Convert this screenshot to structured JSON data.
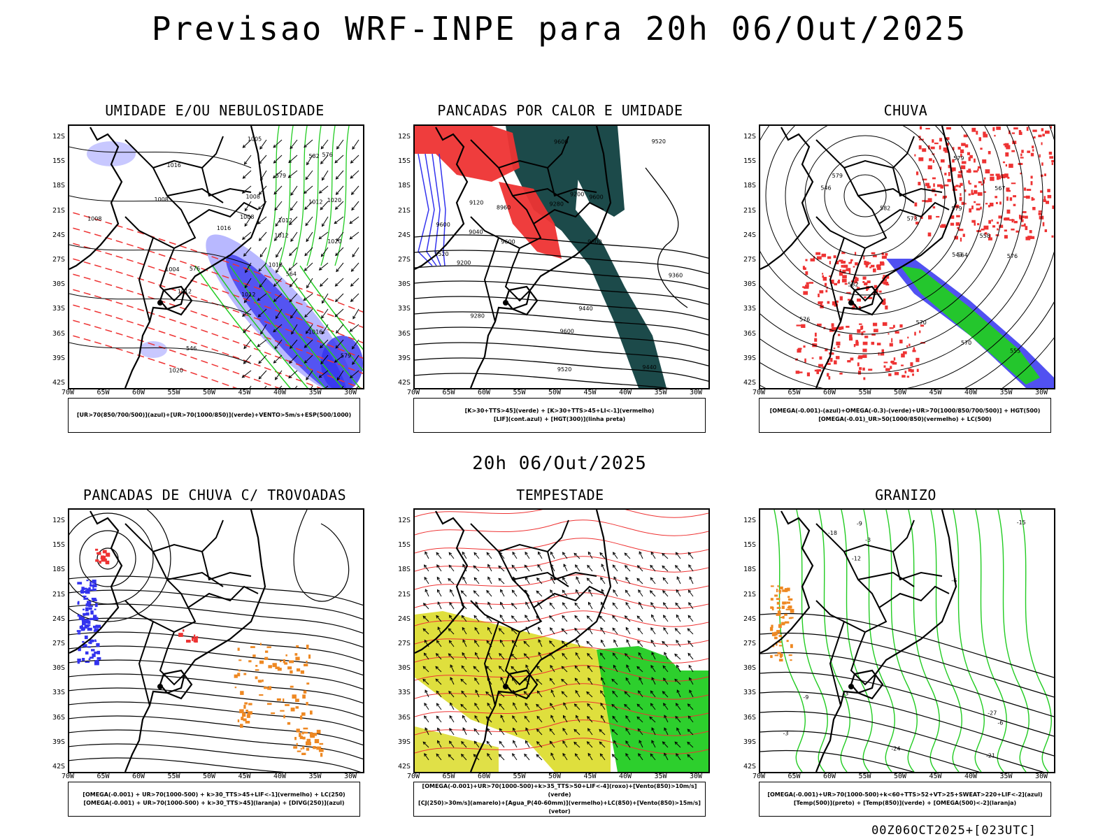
{
  "header": {
    "title": "Previsao WRF-INPE  para 20h 06/Out/2025"
  },
  "mid_time": "20h 06/Out/2025",
  "footer": "00Z06OCT2025+[023UTC]",
  "colors": {
    "coast": "#000000",
    "red": "#ee3333",
    "green": "#22cc22",
    "blue": "#3333ee",
    "lightblue": "#b0b0ff",
    "darkteal": "#1c4a4a",
    "yellow": "#dddd33",
    "orange": "#ee8822"
  },
  "axes": {
    "y_labels": [
      "12S",
      "15S",
      "18S",
      "21S",
      "24S",
      "27S",
      "30S",
      "33S",
      "36S",
      "39S",
      "42S"
    ],
    "x_labels": [
      "70W",
      "65W",
      "60W",
      "55W",
      "50W",
      "45W",
      "40W",
      "35W",
      "30W"
    ]
  },
  "panels": [
    {
      "title": "UMIDADE E/OU NEBULOSIDADE",
      "legend": [
        "[UR>70(850/700/500)](azul)+[UR>70(1000/850)](verde)+VENTO>5m/s+ESP(500/1000)"
      ],
      "contour_labels": [
        "1008",
        "1008",
        "1012",
        "1008",
        "1012",
        "1016",
        "1016",
        "1012",
        "1016",
        "1020",
        "1020",
        "1012",
        "1005",
        "1004",
        "1008",
        "1016",
        "1012",
        "1020",
        "576",
        "576",
        "579",
        "579",
        "582",
        "546",
        "564"
      ]
    },
    {
      "title": "PANCADAS POR CALOR E UMIDADE",
      "legend": [
        "[K>30+TTS>45](verde) + [K>30+TTS>45+LI<-1](vermelho)",
        "[LIF](cont.azul) + [HGT(300)](linha preta)"
      ],
      "contour_labels": [
        "9600",
        "9600",
        "9600",
        "9600",
        "9600",
        "9600",
        "9520",
        "9440",
        "9520",
        "9440",
        "9360",
        "9280",
        "9280",
        "9200",
        "9120",
        "9040",
        "8960",
        "9520",
        "9200"
      ]
    },
    {
      "title": "CHUVA",
      "legend": [
        "[OMEGA(-0.001)-(azul)+OMEGA(-0.3)-(verde)+UR>70(1000/850/700/500)] + HGT(500)",
        "[OMEGA(-0.01)_UR>50(1000/850)(vermelho) + LC(500)"
      ],
      "contour_labels": [
        "582",
        "582",
        "579",
        "579",
        "576",
        "573",
        "570",
        "570",
        "567",
        "564",
        "555",
        "546",
        "543",
        "576",
        "579",
        "558"
      ]
    },
    {
      "title": "PANCADAS DE CHUVA C/ TROVOADAS",
      "legend": [
        "[OMEGA(-0.001) + UR>70(1000-500) + k>30_TTS>45+LIF<-1](vermelho) + LC(250)",
        "[OMEGA(-0.001) + UR>70(1000-500) + k>30_TTS>45](laranja) + [DIVG(250)](azul)"
      ],
      "contour_labels": []
    },
    {
      "title": "TEMPESTADE",
      "legend": [
        "[OMEGA(-0.001)+UR>70(1000-500)+k>35_TTS>50+LIF<-4](roxo)+[Vento(850)>10m/s](verde)",
        "[CJ(250)>30m/s](amarelo)+[Agua_P(40-60mm)](vermelho)+LC(850)+[Vento(850)>15m/s](vetor)"
      ],
      "contour_labels": []
    },
    {
      "title": "GRANIZO",
      "legend": [
        "[OMEGA(-0.001)+UR>70(1000-500)+k<60+TTS>52+VT>25+SWEAT>220+LIF<-2](azul)",
        "[Temp(500)](preto) + [Temp(850)](verde) + [OMEGA(500)<-2](laranja)"
      ],
      "contour_labels": [
        "-12",
        "-9",
        "-6",
        "-3",
        "-15",
        "-18",
        "-21",
        "-24",
        "-27",
        "-3",
        "-6",
        "-9",
        "-3"
      ]
    }
  ]
}
